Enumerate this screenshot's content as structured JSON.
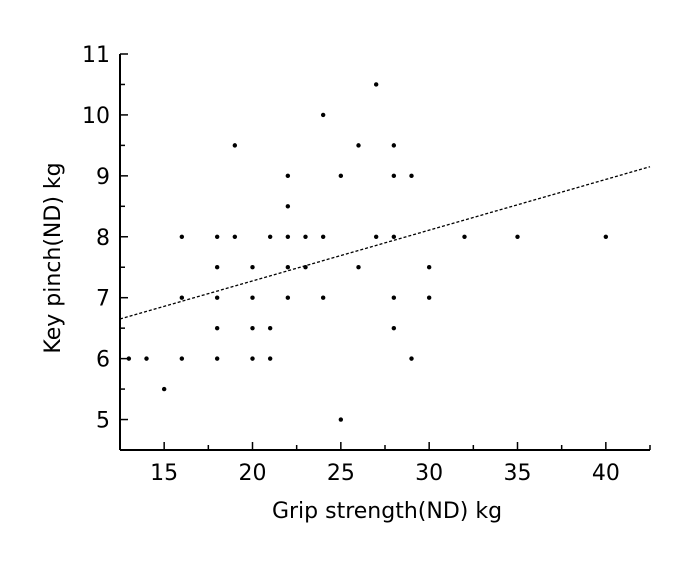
{
  "chart_data": {
    "type": "scatter",
    "title": "",
    "xlabel": "Grip strength(ND) kg",
    "ylabel": "Key pinch(ND) kg",
    "xlim": [
      12.5,
      42.5
    ],
    "ylim": [
      4.5,
      11
    ],
    "xticks": [
      15,
      20,
      25,
      30,
      35,
      40
    ],
    "yticks": [
      5,
      6,
      7,
      8,
      9,
      10,
      11
    ],
    "grid": false,
    "colors": {
      "points": "#000000",
      "trendline": "#000000",
      "axes": "#000000"
    },
    "series": [
      {
        "points": [
          [
            13,
            6
          ],
          [
            14,
            6
          ],
          [
            15,
            5.5
          ],
          [
            16,
            8
          ],
          [
            16,
            7
          ],
          [
            16,
            6
          ],
          [
            18,
            8
          ],
          [
            18,
            7.5
          ],
          [
            18,
            7
          ],
          [
            18,
            6.5
          ],
          [
            18,
            6
          ],
          [
            19,
            9.5
          ],
          [
            19,
            8
          ],
          [
            20,
            7.5
          ],
          [
            20,
            7
          ],
          [
            20,
            6.5
          ],
          [
            20,
            6
          ],
          [
            21,
            8
          ],
          [
            21,
            6.5
          ],
          [
            21,
            6
          ],
          [
            22,
            9
          ],
          [
            22,
            8.5
          ],
          [
            22,
            8
          ],
          [
            22,
            7.5
          ],
          [
            22,
            7
          ],
          [
            23,
            8
          ],
          [
            23,
            7.5
          ],
          [
            24,
            10
          ],
          [
            24,
            8
          ],
          [
            24,
            7
          ],
          [
            25,
            9
          ],
          [
            25,
            5
          ],
          [
            26,
            9.5
          ],
          [
            26,
            7.5
          ],
          [
            27,
            10.5
          ],
          [
            27,
            8
          ],
          [
            28,
            9.5
          ],
          [
            28,
            9
          ],
          [
            28,
            8
          ],
          [
            28,
            7
          ],
          [
            28,
            6.5
          ],
          [
            29,
            9
          ],
          [
            29,
            6
          ],
          [
            30,
            7.5
          ],
          [
            30,
            7
          ],
          [
            32,
            8
          ],
          [
            35,
            8
          ],
          [
            40,
            8
          ]
        ]
      }
    ],
    "trendline": {
      "style": "dotted",
      "x": [
        12.5,
        42.5
      ],
      "y": [
        6.65,
        9.15
      ]
    }
  }
}
